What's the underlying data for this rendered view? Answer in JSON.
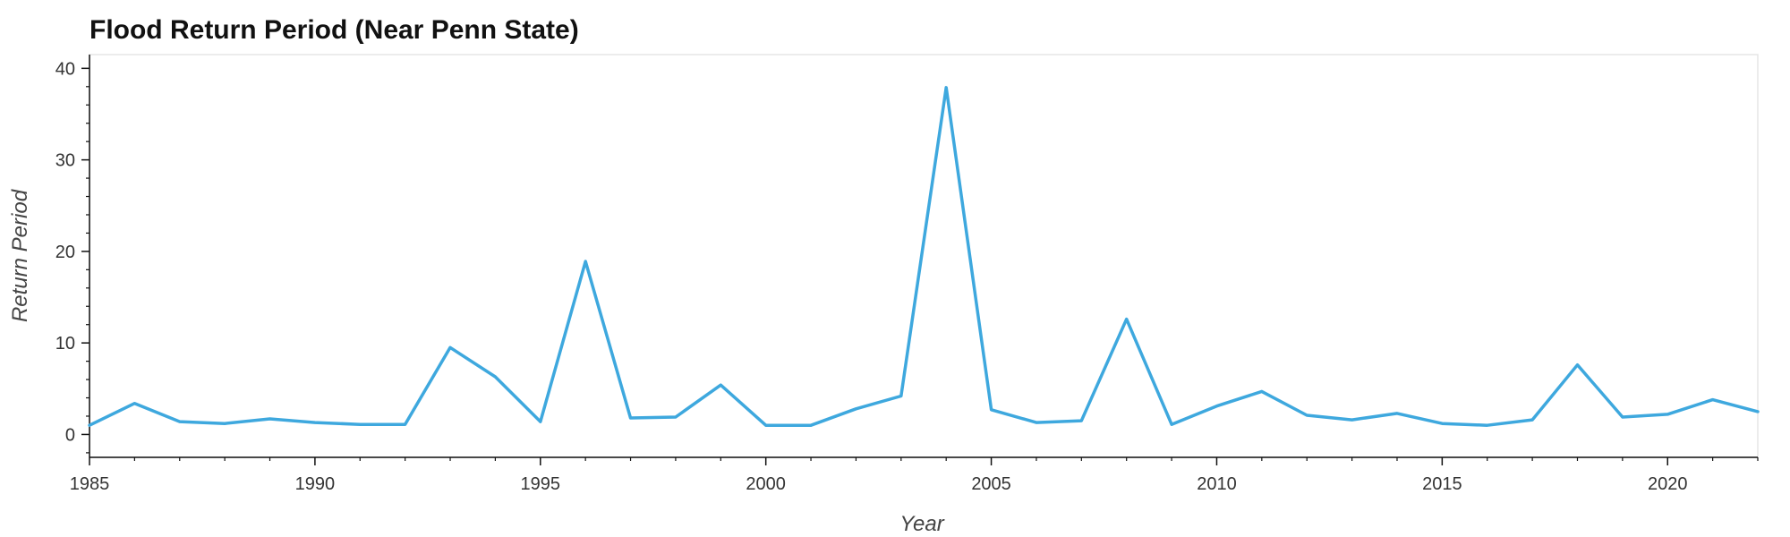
{
  "chart_data": {
    "type": "line",
    "title": "Flood Return Period (Near Penn State)",
    "xlabel": "Year",
    "ylabel": "Return Period",
    "xlim": [
      1985,
      2022
    ],
    "ylim": [
      -2.5,
      41.5
    ],
    "x_ticks": [
      1985,
      1990,
      1995,
      2000,
      2005,
      2010,
      2015,
      2020
    ],
    "y_ticks": [
      0,
      10,
      20,
      30,
      40
    ],
    "grid": false,
    "series": [
      {
        "color": "#3ea8de",
        "x": [
          1985,
          1986,
          1987,
          1988,
          1989,
          1990,
          1991,
          1992,
          1993,
          1994,
          1995,
          1996,
          1997,
          1998,
          1999,
          2000,
          2001,
          2002,
          2003,
          2004,
          2005,
          2006,
          2007,
          2008,
          2009,
          2010,
          2011,
          2012,
          2013,
          2014,
          2015,
          2016,
          2017,
          2018,
          2019,
          2020,
          2021,
          2022
        ],
        "y": [
          1.0,
          3.4,
          1.4,
          1.2,
          1.7,
          1.3,
          1.1,
          1.1,
          9.5,
          6.3,
          1.4,
          18.9,
          1.8,
          1.9,
          5.4,
          1.0,
          1.0,
          2.8,
          4.2,
          37.9,
          2.7,
          1.3,
          1.5,
          12.6,
          1.1,
          3.1,
          4.7,
          2.1,
          1.6,
          2.3,
          1.2,
          1.0,
          1.6,
          7.6,
          1.9,
          2.2,
          3.8,
          2.5
        ]
      }
    ]
  }
}
